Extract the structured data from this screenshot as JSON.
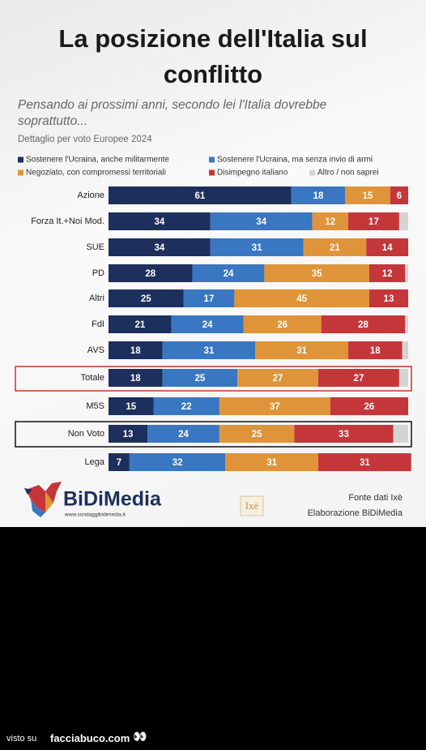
{
  "chart_data": {
    "type": "stacked-bar-horizontal",
    "title": "La posizione dell'Italia sul conflitto",
    "subtitle": "Pensando ai prossimi anni, secondo lei l'Italia dovrebbe soprattutto...",
    "note": "Dettaglio per voto Europee 2024",
    "categories": [
      "Azione",
      "Forza It.+Noi Mod.",
      "SUE",
      "PD",
      "Altri",
      "FdI",
      "AVS",
      "Totale",
      "M5S",
      "Non Voto",
      "Lega"
    ],
    "xlim": [
      0,
      100
    ],
    "series": [
      {
        "name": "Sostenere l'Ucraina, anche militarmente",
        "color": "#1d2f5c",
        "values": [
          61,
          34,
          34,
          28,
          25,
          21,
          18,
          18,
          15,
          13,
          7
        ]
      },
      {
        "name": "Sostenere l'Ucraina, ma senza invio di armi",
        "color": "#3a77c2",
        "values": [
          18,
          34,
          31,
          24,
          17,
          24,
          31,
          25,
          22,
          24,
          32
        ]
      },
      {
        "name": "Negoziato, con compromessi territoriali",
        "color": "#e0943a",
        "values": [
          15,
          12,
          21,
          35,
          45,
          26,
          31,
          27,
          37,
          25,
          31
        ]
      },
      {
        "name": "Disimpegno italiano",
        "color": "#c4363a",
        "values": [
          6,
          17,
          14,
          12,
          13,
          28,
          18,
          27,
          26,
          33,
          31
        ]
      },
      {
        "name": "Altro / non saprei",
        "color": "#d4d4d4",
        "values": [
          0,
          3,
          0,
          1,
          0,
          1,
          2,
          3,
          0,
          5,
          0
        ]
      }
    ]
  },
  "branding": {
    "logo": "BiDiMedia",
    "url": "www.sondaggibidimedia.it",
    "partner": "Ixè",
    "source": "Fonte dati Ixè",
    "processing": "Elaborazione BiDiMedia"
  },
  "watermark": {
    "prefix": "visto su",
    "site": "facciabuco.com"
  }
}
